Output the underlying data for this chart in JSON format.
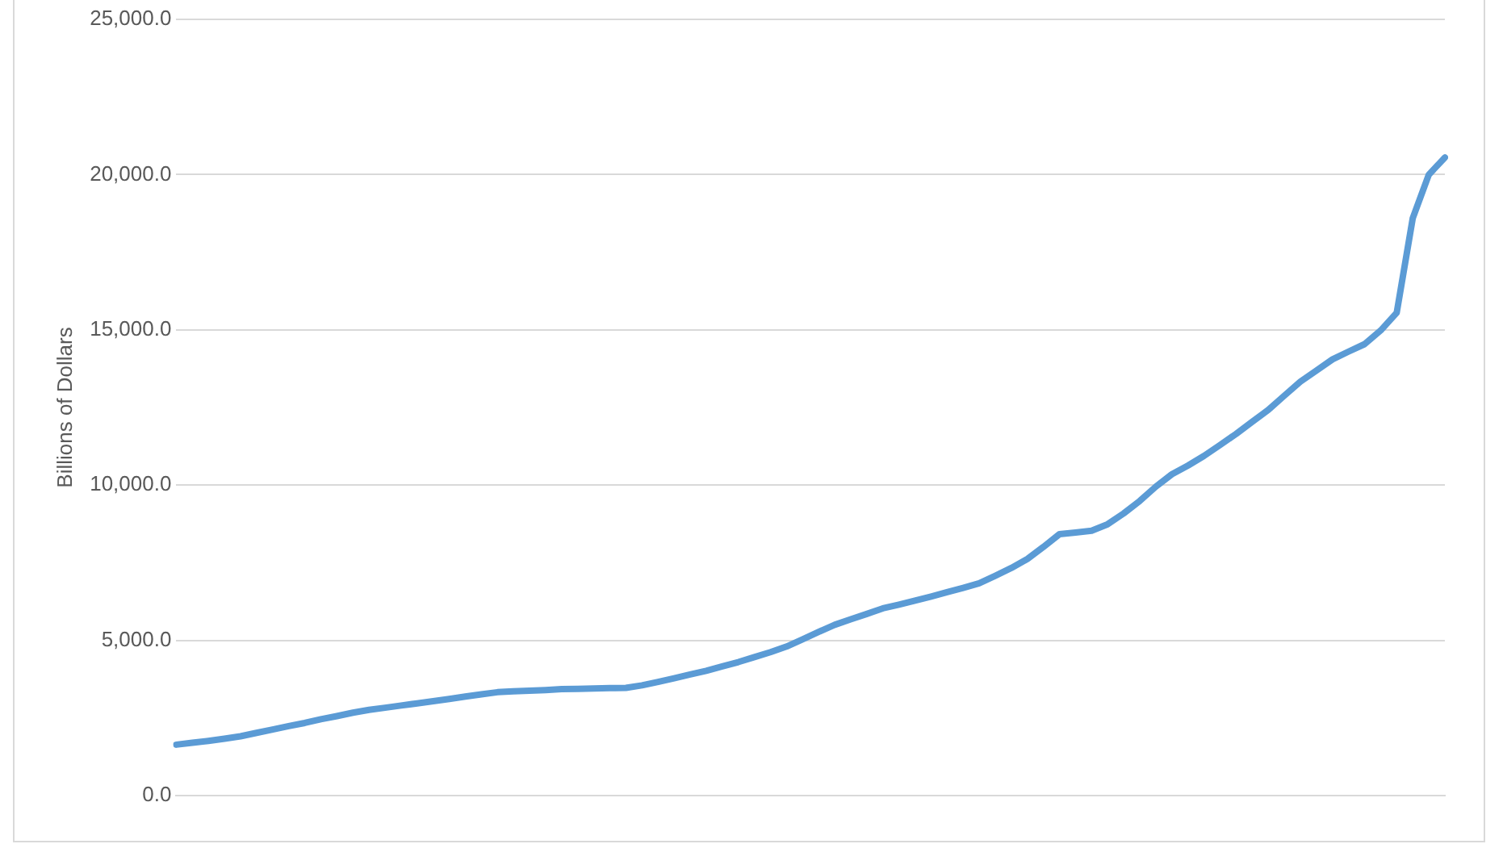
{
  "chart_data": {
    "type": "line",
    "ylabel": "Billions of Dollars",
    "categories": [
      null,
      null,
      null,
      null,
      null,
      null,
      null,
      null,
      null,
      null,
      null,
      null,
      null,
      null,
      null,
      null,
      null,
      null,
      null,
      null,
      null,
      null,
      null,
      null,
      null,
      null,
      null,
      null,
      null,
      null,
      null,
      null,
      null,
      null,
      null,
      null,
      null,
      null,
      null,
      null,
      null,
      null,
      null,
      null,
      null,
      null,
      null,
      null,
      null,
      null,
      null,
      null,
      null,
      null,
      null,
      null,
      null,
      null,
      null,
      null,
      null,
      null,
      null,
      null,
      null,
      null,
      null,
      null,
      null,
      null,
      null,
      null,
      null,
      null,
      null,
      null,
      null,
      null,
      null,
      null
    ],
    "series": [
      {
        "color": "#5b9bd5",
        "values": [
          1640,
          1700,
          1760,
          1830,
          1910,
          2020,
          2130,
          2240,
          2340,
          2460,
          2560,
          2670,
          2760,
          2830,
          2900,
          2970,
          3040,
          3110,
          3190,
          3260,
          3330,
          3360,
          3380,
          3400,
          3430,
          3440,
          3450,
          3460,
          3470,
          3550,
          3660,
          3780,
          3900,
          4020,
          4160,
          4300,
          4460,
          4620,
          4800,
          5030,
          5270,
          5500,
          5680,
          5850,
          6030,
          6150,
          6280,
          6410,
          6550,
          6690,
          6840,
          7080,
          7330,
          7620,
          8010,
          8420,
          8470,
          8530,
          8740,
          9090,
          9490,
          9950,
          10350,
          10630,
          10940,
          11290,
          11650,
          12040,
          12420,
          12880,
          13330,
          13690,
          14050,
          14300,
          14540,
          14980,
          15550,
          18600,
          20000,
          20550
        ]
      }
    ],
    "ylim": [
      0,
      25000
    ],
    "yticks": [
      {
        "value": 0,
        "label": "0.0"
      },
      {
        "value": 5000,
        "label": "5,000.0"
      },
      {
        "value": 10000,
        "label": "10,000.0"
      },
      {
        "value": 15000,
        "label": "15,000.0"
      },
      {
        "value": 20000,
        "label": "20,000.0"
      },
      {
        "value": 25000,
        "label": "25,000.0"
      }
    ],
    "grid": "y",
    "legend": false,
    "marker": "none",
    "line_style": "solid",
    "tick_labels": "y"
  }
}
